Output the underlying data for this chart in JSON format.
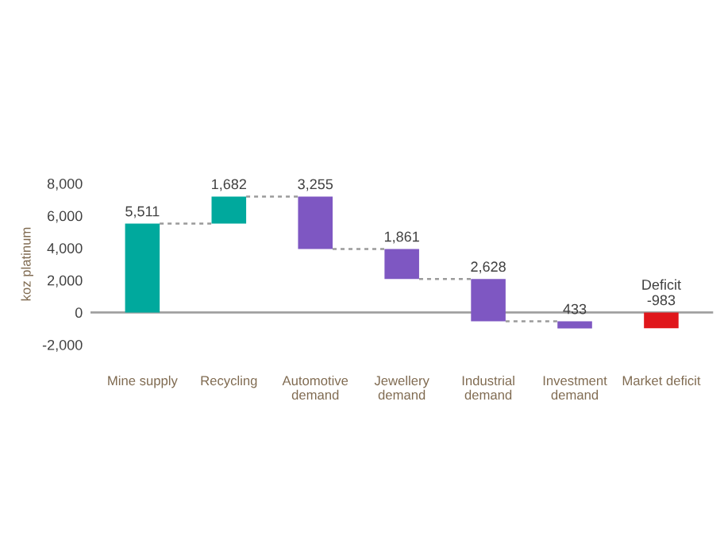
{
  "chart_data": {
    "type": "bar",
    "ylabel": "koz platinum",
    "categories": [
      "Mine supply",
      "Recycling",
      "Automotive\ndemand",
      "Jewellery\ndemand",
      "Industrial\ndemand",
      "Investment\ndemand",
      "Market deficit"
    ],
    "base": [
      0,
      5511,
      3938,
      2077,
      -551,
      -984,
      0
    ],
    "values": [
      5511,
      1682,
      3255,
      1861,
      2628,
      433,
      -983
    ],
    "colors": [
      "#00a99d",
      "#00a99d",
      "#7e57c2",
      "#7e57c2",
      "#7e57c2",
      "#7e57c2",
      "#e0161b"
    ],
    "value_labels": [
      "5,511",
      "1,682",
      "3,255",
      "1,861",
      "2,628",
      "433",
      "Deficit\n-983"
    ],
    "ylim": [
      -2000,
      8000
    ],
    "yticks": [
      {
        "value": -2000,
        "label": "-2,000"
      },
      0,
      {
        "value": 2000,
        "label": "2,000"
      },
      {
        "value": 4000,
        "label": "4,000"
      },
      {
        "value": 6000,
        "label": "6,000"
      },
      {
        "value": 8000,
        "label": "8,000"
      }
    ],
    "ref_lines": [
      {
        "axis": "y",
        "value": 0,
        "color": "#a0a0a0"
      }
    ],
    "grid": false,
    "legend": false
  }
}
